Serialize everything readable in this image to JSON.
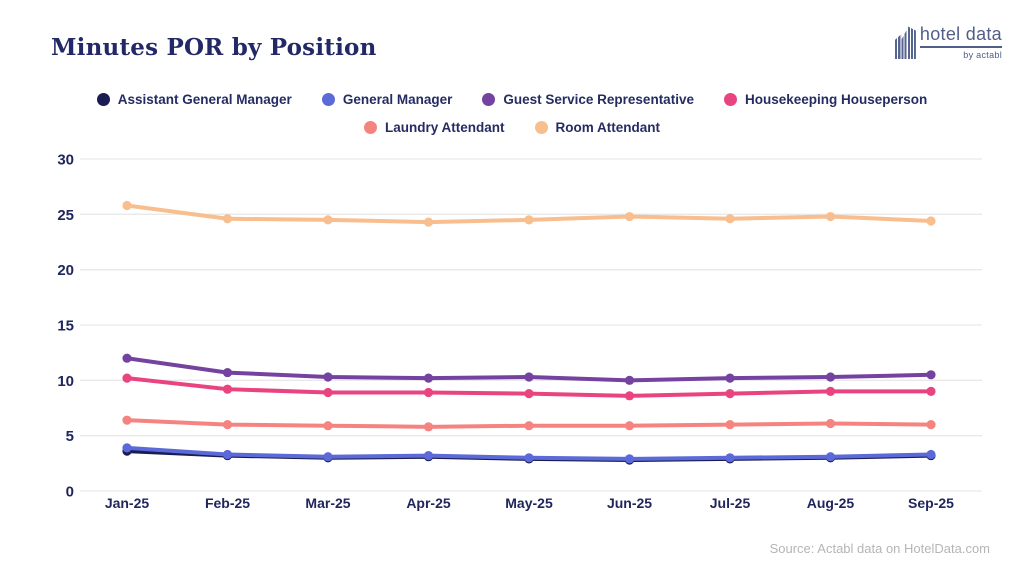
{
  "header": {
    "title": "Minutes POR by Position",
    "logo": {
      "icon": "building-icon",
      "text": "hotel data",
      "byline": "by actabl"
    }
  },
  "source_note": "Source: Actabl data on HotelData.com",
  "chart_data": {
    "type": "line",
    "title": "Minutes POR by Position",
    "categories": [
      "Jan-25",
      "Feb-25",
      "Mar-25",
      "Apr-25",
      "May-25",
      "Jun-25",
      "Jul-25",
      "Aug-25",
      "Sep-25"
    ],
    "series": [
      {
        "name": "Assistant General Manager",
        "color": "#1a1c52",
        "values": [
          3.6,
          3.2,
          3.0,
          3.1,
          2.9,
          2.8,
          2.9,
          3.0,
          3.2
        ]
      },
      {
        "name": "General Manager",
        "color": "#5b6ad8",
        "values": [
          3.9,
          3.3,
          3.1,
          3.2,
          3.0,
          2.9,
          3.0,
          3.1,
          3.3
        ]
      },
      {
        "name": "Guest Service Representative",
        "color": "#7443a0",
        "values": [
          12.0,
          10.7,
          10.3,
          10.2,
          10.3,
          10.0,
          10.2,
          10.3,
          10.5
        ]
      },
      {
        "name": "Housekeeping Houseperson",
        "color": "#e9447f",
        "values": [
          10.2,
          9.2,
          8.9,
          8.9,
          8.8,
          8.6,
          8.8,
          9.0,
          9.0
        ]
      },
      {
        "name": "Laundry Attendant",
        "color": "#f58480",
        "values": [
          6.4,
          6.0,
          5.9,
          5.8,
          5.9,
          5.9,
          6.0,
          6.1,
          6.0
        ]
      },
      {
        "name": "Room Attendant",
        "color": "#f8be8e",
        "values": [
          25.8,
          24.6,
          24.5,
          24.3,
          24.5,
          24.8,
          24.6,
          24.8,
          24.4
        ]
      }
    ],
    "ylim": [
      0,
      30
    ],
    "yticks": [
      0,
      5,
      10,
      15,
      20,
      25,
      30
    ],
    "xlabel": "",
    "ylabel": "",
    "grid": true,
    "legend_position": "top",
    "legend_rows": 2
  }
}
